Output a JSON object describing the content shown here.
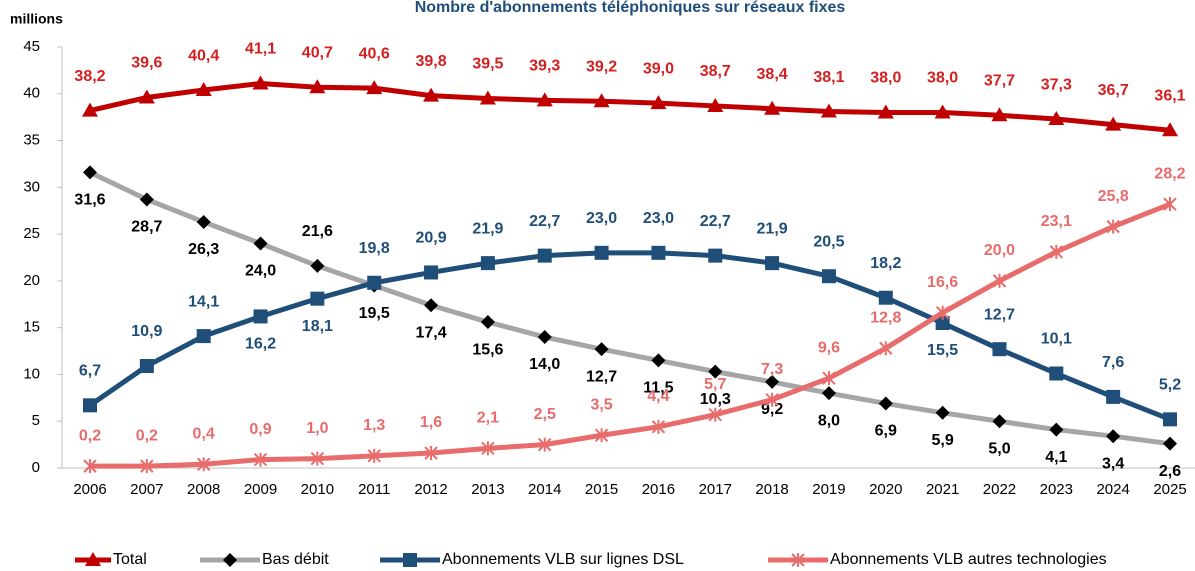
{
  "chart_data": {
    "type": "line",
    "title": "Nombre d'abonnements téléphoniques sur réseaux fixes",
    "y_label": "millions",
    "categories": [
      "2006",
      "2007",
      "2008",
      "2009",
      "2010",
      "2011",
      "2012",
      "2013",
      "2014",
      "2015",
      "2016",
      "2017",
      "2018",
      "2019",
      "2020",
      "2021",
      "2022",
      "2023",
      "2024",
      "2025"
    ],
    "ylim": [
      0,
      45
    ],
    "yticks": [
      0,
      5,
      10,
      15,
      20,
      25,
      30,
      35,
      40,
      45
    ],
    "grid": false,
    "legend": "bottom",
    "series": [
      {
        "name": "Total",
        "color": "#c00000",
        "marker": "triangle",
        "marker_color": "#c00000",
        "label_color": "#d42020",
        "values": [
          38.2,
          39.6,
          40.4,
          41.1,
          40.7,
          40.6,
          39.8,
          39.5,
          39.3,
          39.2,
          39.0,
          38.7,
          38.4,
          38.1,
          38.0,
          38.0,
          37.7,
          37.3,
          36.7,
          36.1
        ],
        "value_labels": [
          "38,2",
          "39,6",
          "40,4",
          "41,1",
          "40,7",
          "40,6",
          "39,8",
          "39,5",
          "39,3",
          "39,2",
          "39,0",
          "38,7",
          "38,4",
          "38,1",
          "38,0",
          "38,0",
          "37,7",
          "37,3",
          "36,7",
          "36,1"
        ]
      },
      {
        "name": "Bas débit",
        "color": "#a6a6a6",
        "marker": "diamond",
        "marker_color": "#000000",
        "label_color": "#000000",
        "values": [
          31.6,
          28.7,
          26.3,
          24.0,
          21.6,
          19.5,
          17.4,
          15.6,
          14.0,
          12.7,
          11.5,
          10.3,
          9.2,
          8.0,
          6.9,
          5.9,
          5.0,
          4.1,
          3.4,
          2.6
        ],
        "value_labels": [
          "31,6",
          "28,7",
          "26,3",
          "24,0",
          "21,6",
          "19,5",
          "17,4",
          "15,6",
          "14,0",
          "12,7",
          "11,5",
          "10,3",
          "9,2",
          "8,0",
          "6,9",
          "5,9",
          "5,0",
          "4,1",
          "3,4",
          "2,6"
        ]
      },
      {
        "name": "Abonnements VLB sur lignes DSL",
        "color": "#1f4e79",
        "marker": "square",
        "marker_color": "#1f4e79",
        "label_color": "#1f4e79",
        "values": [
          6.7,
          10.9,
          14.1,
          16.2,
          18.1,
          19.8,
          20.9,
          21.9,
          22.7,
          23.0,
          23.0,
          22.7,
          21.9,
          20.5,
          18.2,
          15.5,
          12.7,
          10.1,
          7.6,
          5.2
        ],
        "value_labels": [
          "6,7",
          "10,9",
          "14,1",
          "16,2",
          "18,1",
          "19,8",
          "20,9",
          "21,9",
          "22,7",
          "23,0",
          "23,0",
          "22,7",
          "21,9",
          "20,5",
          "18,2",
          "15,5",
          "12,7",
          "10,1",
          "7,6",
          "5,2"
        ]
      },
      {
        "name": "Abonnements VLB autres technologies",
        "color": "#e86c6c",
        "marker": "x",
        "marker_color": "#e86c6c",
        "label_color": "#e86c6c",
        "values": [
          0.2,
          0.2,
          0.4,
          0.9,
          1.0,
          1.3,
          1.6,
          2.1,
          2.5,
          3.5,
          4.4,
          5.7,
          7.3,
          9.6,
          12.8,
          16.6,
          20.0,
          23.1,
          25.8,
          28.2
        ],
        "value_labels": [
          "0,2",
          "0,2",
          "0,4",
          "0,9",
          "1,0",
          "1,3",
          "1,6",
          "2,1",
          "2,5",
          "3,5",
          "4,4",
          "5,7",
          "7,3",
          "9,6",
          "12,8",
          "16,6",
          "20,0",
          "23,1",
          "25,8",
          "28,2"
        ]
      }
    ]
  }
}
